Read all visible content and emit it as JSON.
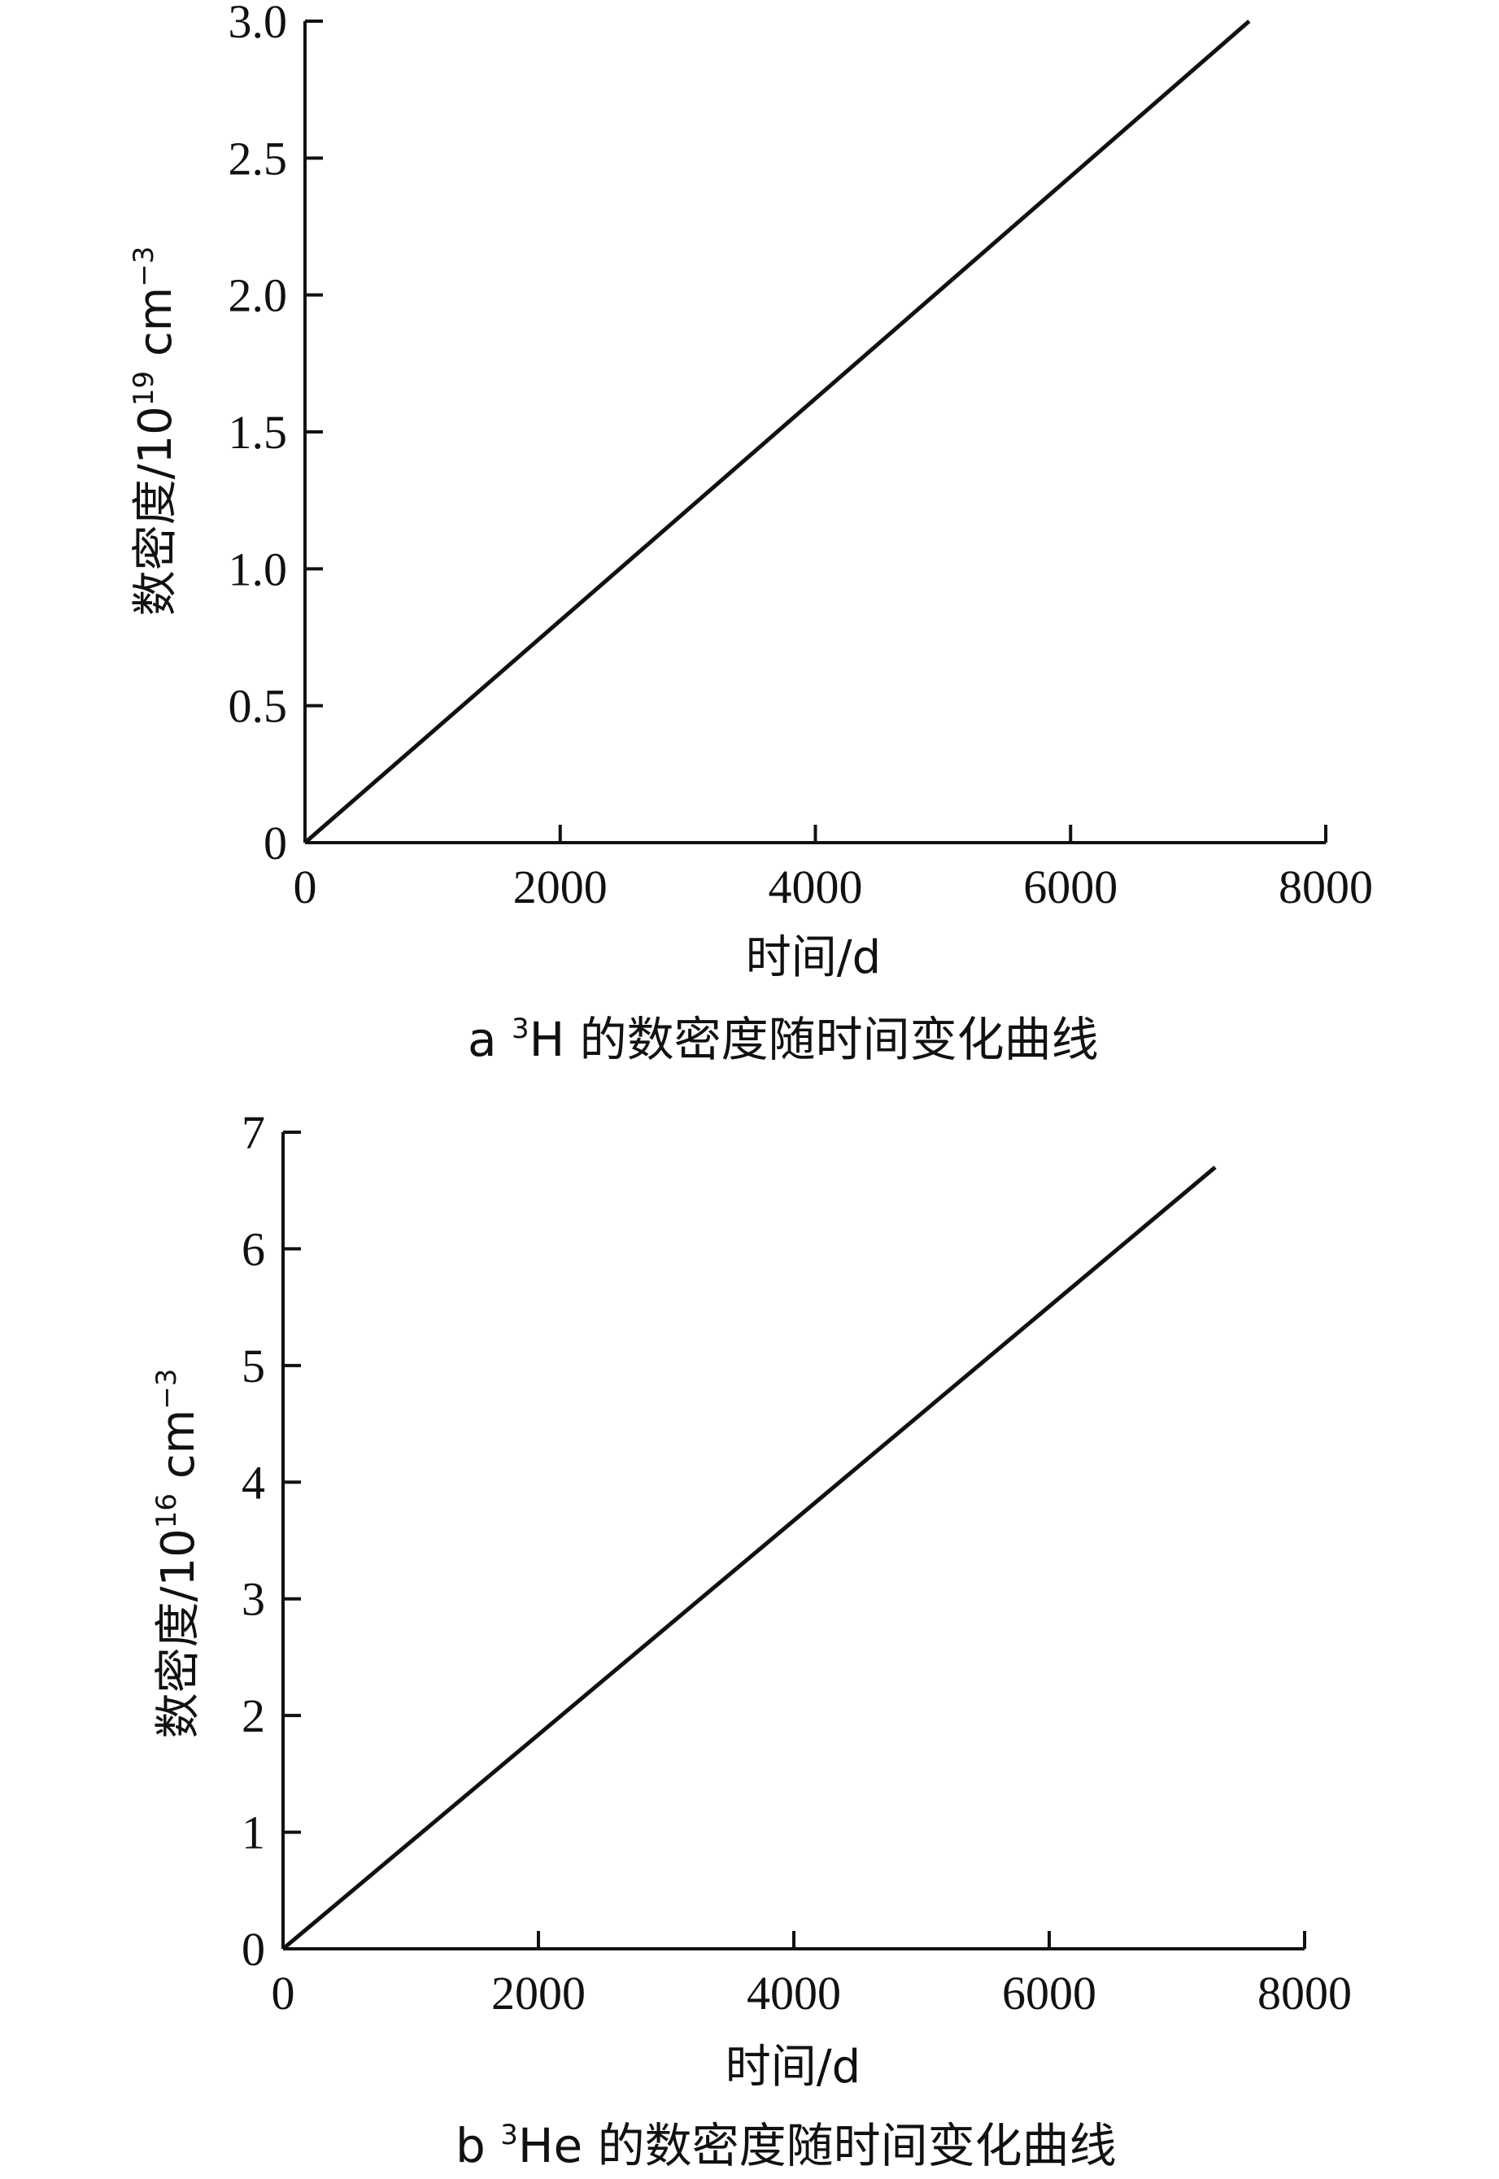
{
  "chart_data": [
    {
      "type": "line",
      "caption_prefix": "a ",
      "caption_super": "3",
      "caption_rest": "H 的数密度随时间变化曲线",
      "xlabel": "时间/d",
      "ylabel_main": "数密度/10",
      "ylabel_exp": "19",
      "ylabel_unit": " cm",
      "ylabel_unit_exp": "−3",
      "xlim": [
        0,
        8000
      ],
      "ylim": [
        0,
        3.0
      ],
      "x_ticks": [
        "0",
        "2000",
        "4000",
        "6000",
        "8000"
      ],
      "y_ticks": [
        "0",
        "0.5",
        "1.0",
        "1.5",
        "2.0",
        "2.5",
        "3.0"
      ],
      "series": [
        {
          "x": [
            0,
            7400
          ],
          "y": [
            0,
            3.0
          ]
        }
      ]
    },
    {
      "type": "line",
      "caption_prefix": "b ",
      "caption_super": "3",
      "caption_rest": "He 的数密度随时间变化曲线",
      "xlabel": "时间/d",
      "ylabel_main": "数密度/10",
      "ylabel_exp": "16",
      "ylabel_unit": " cm",
      "ylabel_unit_exp": "−3",
      "xlim": [
        0,
        8000
      ],
      "ylim": [
        0,
        7
      ],
      "x_ticks": [
        "0",
        "2000",
        "4000",
        "6000",
        "8000"
      ],
      "y_ticks": [
        "0",
        "1",
        "2",
        "3",
        "4",
        "5",
        "6",
        "7"
      ],
      "series": [
        {
          "x": [
            0,
            7300
          ],
          "y": [
            0,
            6.7
          ]
        }
      ]
    }
  ]
}
